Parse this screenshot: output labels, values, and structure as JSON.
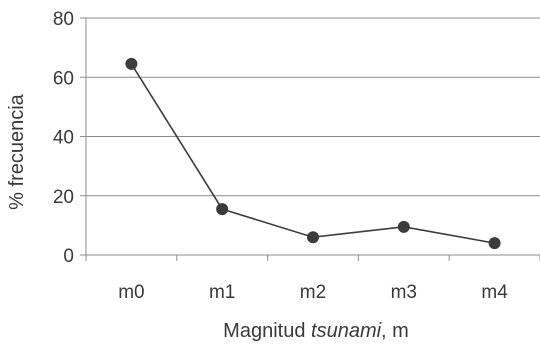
{
  "chart_data": {
    "type": "line",
    "title": "",
    "xlabel_parts": [
      {
        "text": "Magnitud ",
        "italic": false
      },
      {
        "text": "tsunami",
        "italic": true
      },
      {
        "text": ", m",
        "italic": false
      }
    ],
    "ylabel": "% frecuencia",
    "categories": [
      "m0",
      "m1",
      "m2",
      "m3",
      "m4"
    ],
    "series": [
      {
        "values": [
          64.5,
          15.5,
          6,
          9.5,
          4
        ]
      }
    ],
    "ylim": [
      0,
      80
    ],
    "yticks": [
      0,
      20,
      40,
      60,
      80
    ],
    "grid": true,
    "colors": {
      "line": "#3c3c3c",
      "marker": "#3c3c3c",
      "grid": "#8c8c8c",
      "axis": "#8c8c8c",
      "text": "#3a3a3a"
    }
  }
}
